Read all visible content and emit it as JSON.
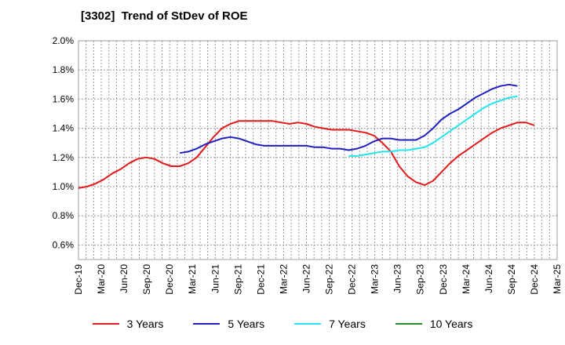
{
  "chart_data": {
    "type": "line",
    "title": "[3302]  Trend of StDev of ROE",
    "xlabel": "",
    "ylabel": "",
    "ylim": [
      0.5,
      2.0
    ],
    "x_ticks": [
      "Dec-19",
      "Mar-20",
      "Jun-20",
      "Sep-20",
      "Dec-20",
      "Mar-21",
      "Jun-21",
      "Sep-21",
      "Dec-21",
      "Mar-22",
      "Jun-22",
      "Sep-22",
      "Dec-22",
      "Mar-23",
      "Jun-23",
      "Sep-23",
      "Dec-23",
      "Mar-24",
      "Jun-24",
      "Sep-24",
      "Dec-24",
      "Mar-25"
    ],
    "y_ticks": [
      "0.6%",
      "0.8%",
      "1.0%",
      "1.2%",
      "1.4%",
      "1.6%",
      "1.8%",
      "2.0%"
    ],
    "y_tick_values": [
      0.6,
      0.8,
      1.0,
      1.2,
      1.4,
      1.6,
      1.8,
      2.0
    ],
    "grid": true,
    "legend_position": "bottom",
    "series": [
      {
        "name": "3 Years",
        "color": "#e31a1c",
        "values": [
          0.99,
          1.0,
          1.02,
          1.05,
          1.09,
          1.12,
          1.16,
          1.19,
          1.2,
          1.19,
          1.16,
          1.14,
          1.14,
          1.16,
          1.2,
          1.27,
          1.34,
          1.4,
          1.43,
          1.45,
          1.45,
          1.45,
          1.45,
          1.45,
          1.44,
          1.43,
          1.44,
          1.43,
          1.41,
          1.4,
          1.39,
          1.39,
          1.39,
          1.38,
          1.37,
          1.35,
          1.3,
          1.24,
          1.14,
          1.07,
          1.03,
          1.01,
          1.04,
          1.1,
          1.16,
          1.21,
          1.25,
          1.29,
          1.33,
          1.37,
          1.4,
          1.42,
          1.44,
          1.44,
          1.42
        ]
      },
      {
        "name": "5 Years",
        "color": "#1f1fbf",
        "values": [
          null,
          null,
          null,
          null,
          null,
          null,
          null,
          null,
          null,
          null,
          null,
          null,
          1.23,
          1.24,
          1.26,
          1.29,
          1.31,
          1.33,
          1.34,
          1.33,
          1.31,
          1.29,
          1.28,
          1.28,
          1.28,
          1.28,
          1.28,
          1.28,
          1.27,
          1.27,
          1.26,
          1.26,
          1.25,
          1.26,
          1.28,
          1.31,
          1.33,
          1.33,
          1.32,
          1.32,
          1.32,
          1.35,
          1.4,
          1.46,
          1.5,
          1.53,
          1.57,
          1.61,
          1.64,
          1.67,
          1.69,
          1.7,
          1.69,
          null,
          null
        ]
      },
      {
        "name": "7 Years",
        "color": "#22e5ee",
        "values": [
          null,
          null,
          null,
          null,
          null,
          null,
          null,
          null,
          null,
          null,
          null,
          null,
          null,
          null,
          null,
          null,
          null,
          null,
          null,
          null,
          null,
          null,
          null,
          null,
          null,
          null,
          null,
          null,
          null,
          null,
          null,
          null,
          1.21,
          1.21,
          1.22,
          1.23,
          1.24,
          1.24,
          1.25,
          1.25,
          1.26,
          1.27,
          1.3,
          1.34,
          1.38,
          1.42,
          1.46,
          1.5,
          1.54,
          1.57,
          1.59,
          1.61,
          1.62,
          null,
          null
        ]
      },
      {
        "name": "10 Years",
        "color": "#2a8a2a",
        "values": []
      }
    ]
  }
}
